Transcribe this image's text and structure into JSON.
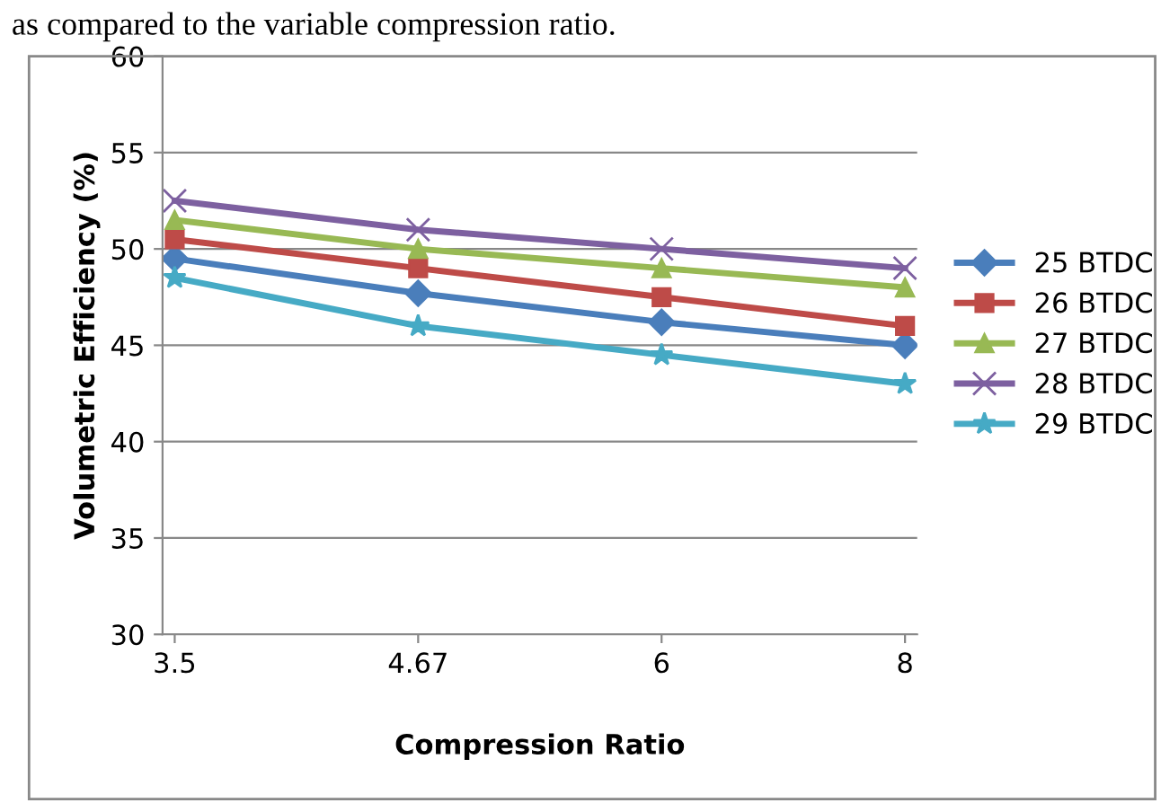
{
  "chart_data": {
    "type": "line",
    "xlabel": "Compression Ratio",
    "ylabel": "Volumetric Efficiency (%)",
    "annotations": [
      "as compared to the variable compression ratio."
    ],
    "categories": [
      "3.5",
      "4.67",
      "6",
      "8"
    ],
    "series": [
      {
        "name": "25 BTDC",
        "color": "#4a7ebb",
        "marker": "diamond",
        "values": [
          49.5,
          47.7,
          46.2,
          45
        ]
      },
      {
        "name": "26 BTDC",
        "color": "#be4b48",
        "marker": "square",
        "values": [
          50.5,
          49,
          47.5,
          46
        ]
      },
      {
        "name": "27 BTDC",
        "color": "#98b954",
        "marker": "triangle",
        "values": [
          51.5,
          50,
          49,
          48
        ]
      },
      {
        "name": "28 BTDC",
        "color": "#7d60a0",
        "marker": "cross",
        "values": [
          52.5,
          51,
          50,
          49
        ]
      },
      {
        "name": "29 BTDC",
        "color": "#46aac5",
        "marker": "star",
        "values": [
          48.5,
          46,
          44.5,
          43
        ]
      }
    ],
    "ylim": [
      30,
      60
    ],
    "yticks": [
      30,
      35,
      40,
      45,
      50,
      55,
      60
    ],
    "grid": "y",
    "legend": "right"
  }
}
